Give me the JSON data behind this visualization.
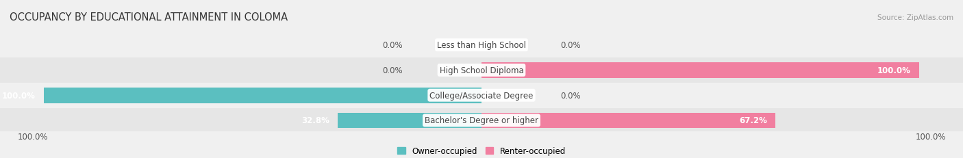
{
  "title": "OCCUPANCY BY EDUCATIONAL ATTAINMENT IN COLOMA",
  "source": "Source: ZipAtlas.com",
  "categories": [
    "Less than High School",
    "High School Diploma",
    "College/Associate Degree",
    "Bachelor's Degree or higher"
  ],
  "owner_values": [
    0.0,
    0.0,
    100.0,
    32.8
  ],
  "renter_values": [
    0.0,
    100.0,
    0.0,
    67.2
  ],
  "owner_color": "#5bbfc0",
  "renter_color": "#f17fa0",
  "row_colors": [
    "#f5f5f5",
    "#ebebeb",
    "#f5f5f5",
    "#ebebeb"
  ],
  "bg_color": "#f0f0f0",
  "axis_max": 100.0,
  "legend_labels": [
    "Owner-occupied",
    "Renter-occupied"
  ],
  "bar_height": 0.62,
  "label_fontsize": 8.5,
  "title_fontsize": 10.5,
  "source_fontsize": 7.5,
  "value_color": "#555555",
  "label_color": "#444444"
}
